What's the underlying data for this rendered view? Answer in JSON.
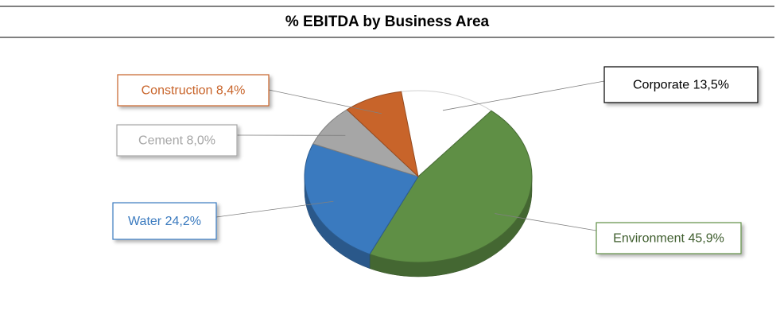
{
  "chart_data": {
    "type": "pie",
    "title": "% EBITDA by Business Area",
    "categories": [
      "Corporate",
      "Environment",
      "Water",
      "Cement",
      "Construction"
    ],
    "values": [
      13.5,
      45.9,
      24.2,
      8.0,
      8.4
    ],
    "value_labels": [
      "13,5%",
      "45,9%",
      "24,2%",
      "8,0%",
      "8,4%"
    ],
    "colors": [
      "#ffffff",
      "#5f8f45",
      "#3a7abf",
      "#a6a6a6",
      "#c8642a"
    ]
  }
}
